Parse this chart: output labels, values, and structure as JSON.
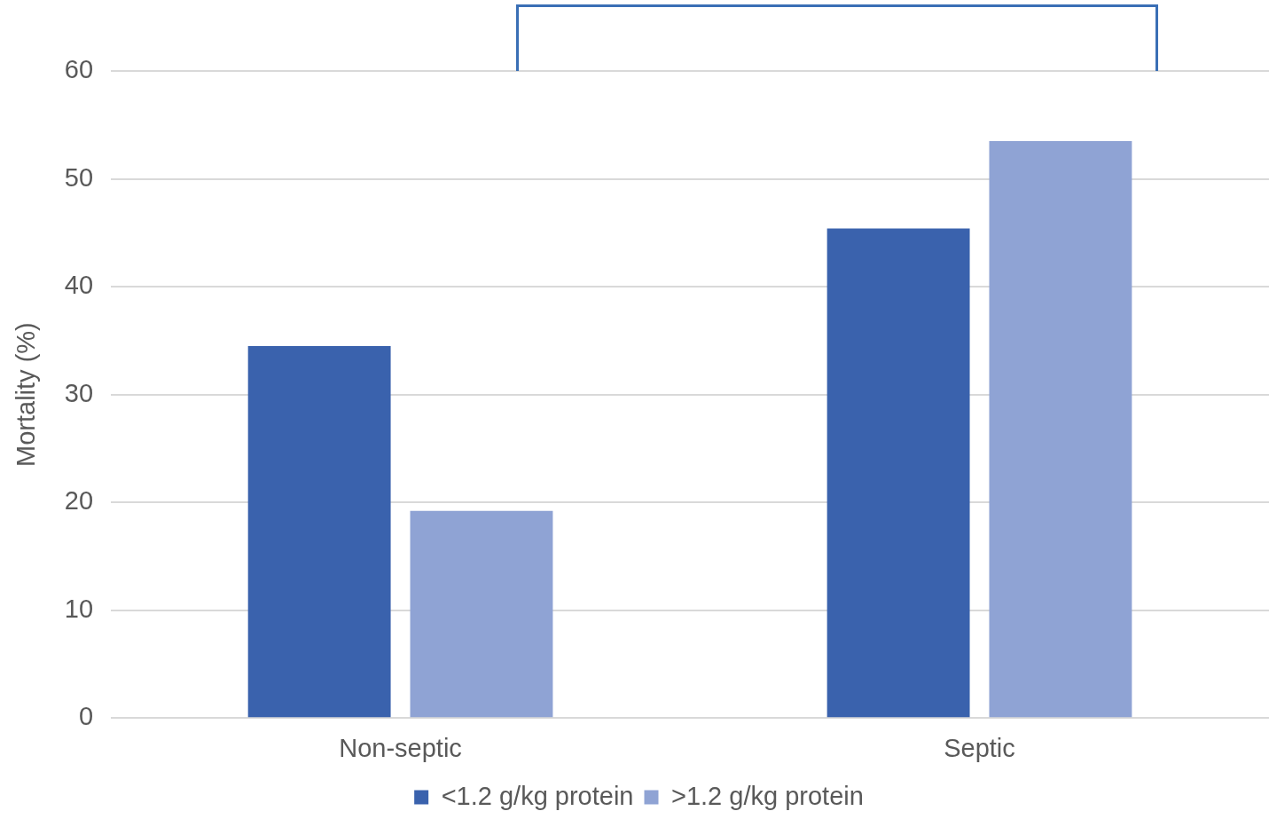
{
  "chart_data": {
    "type": "bar",
    "ylabel": "Mortality (%)",
    "categories": [
      "Non-septic",
      "Septic"
    ],
    "series": [
      {
        "name": "<1.2 g/kg protein",
        "color": "#3a62ad",
        "values": [
          34.5,
          45.4
        ]
      },
      {
        "name": ">1.2 g/kg protein",
        "color": "#8fa3d4",
        "values": [
          19.2,
          53.5
        ]
      }
    ],
    "ylim": [
      0,
      60
    ],
    "yticks": [
      0,
      10,
      20,
      30,
      40,
      50,
      60
    ],
    "grid": "y",
    "legend": "bottom"
  }
}
